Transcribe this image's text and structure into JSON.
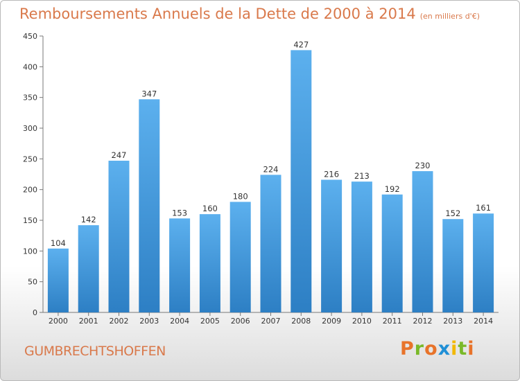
{
  "header": {
    "title": "Remboursements Annuels de la Dette de 2000 à 2014",
    "unit": "(en milliers d'€)"
  },
  "footer": {
    "commune": "GUMBRECHTSHOFFEN",
    "logo_text": "Proxiti",
    "logo_colors": [
      "#e8732a",
      "#7ab929",
      "#e8732a",
      "#1f8fd6",
      "#f2b800",
      "#7ab929",
      "#e8732a"
    ]
  },
  "chart_data": {
    "type": "bar",
    "categories": [
      "2000",
      "2001",
      "2002",
      "2003",
      "2004",
      "2005",
      "2006",
      "2007",
      "2008",
      "2009",
      "2010",
      "2011",
      "2012",
      "2013",
      "2014"
    ],
    "values": [
      104,
      142,
      247,
      347,
      153,
      160,
      180,
      224,
      427,
      216,
      213,
      192,
      230,
      152,
      161
    ],
    "yticks": [
      0,
      50,
      100,
      150,
      200,
      250,
      300,
      350,
      400,
      450
    ],
    "ylim": [
      0,
      450
    ],
    "grid": false,
    "bar_color": "#4a9fe0"
  }
}
